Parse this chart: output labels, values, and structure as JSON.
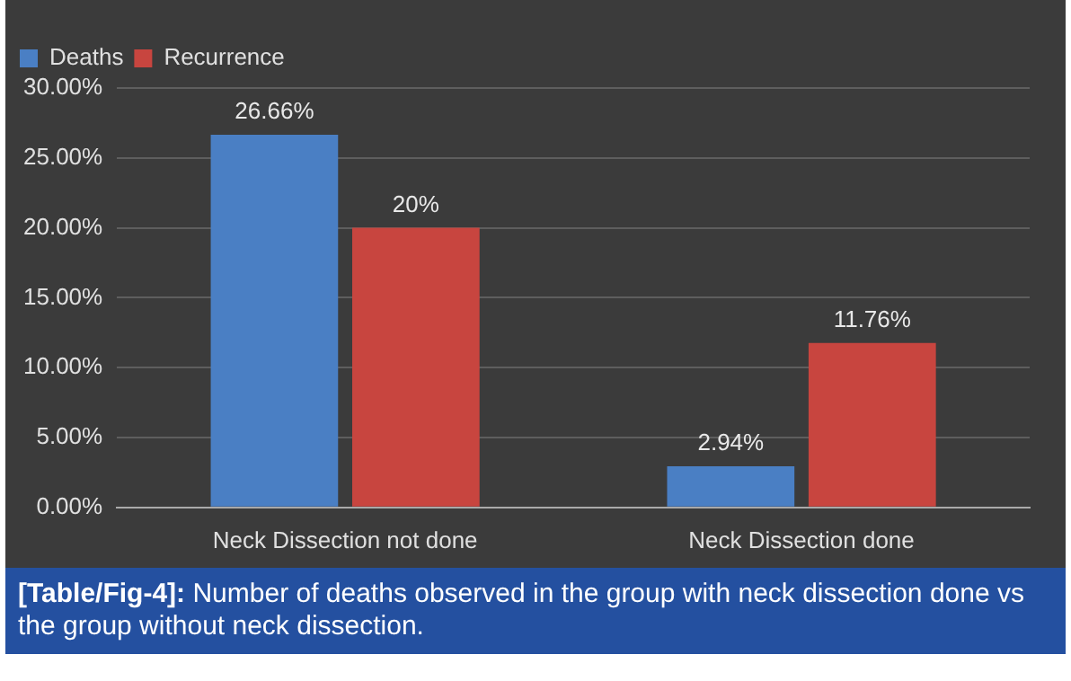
{
  "chart_data": {
    "type": "bar",
    "categories": [
      "Neck Dissection not done",
      "Neck Dissection done"
    ],
    "series": [
      {
        "name": "Deaths",
        "color": "#4a7fc4",
        "values": [
          26.66,
          2.94
        ],
        "value_labels": [
          "26.66%",
          "2.94%"
        ]
      },
      {
        "name": "Recurrence",
        "color": "#c8453f",
        "values": [
          20,
          11.76
        ],
        "value_labels": [
          "20%",
          "11.76%"
        ]
      }
    ],
    "ylim": [
      0,
      30
    ],
    "yticks": [
      {
        "value": 0,
        "label": "0.00%"
      },
      {
        "value": 5,
        "label": "5.00%"
      },
      {
        "value": 10,
        "label": "10.00%"
      },
      {
        "value": 15,
        "label": "15.00%"
      },
      {
        "value": 20,
        "label": "20.00%"
      },
      {
        "value": 25,
        "label": "25.00%"
      },
      {
        "value": 30,
        "label": "30.00%"
      }
    ],
    "grid": "y",
    "legend": "top",
    "annotations": [
      "[Table/Fig-4]: Number of deaths observed in the group with neck dissection done vs the group without neck dissection."
    ]
  }
}
